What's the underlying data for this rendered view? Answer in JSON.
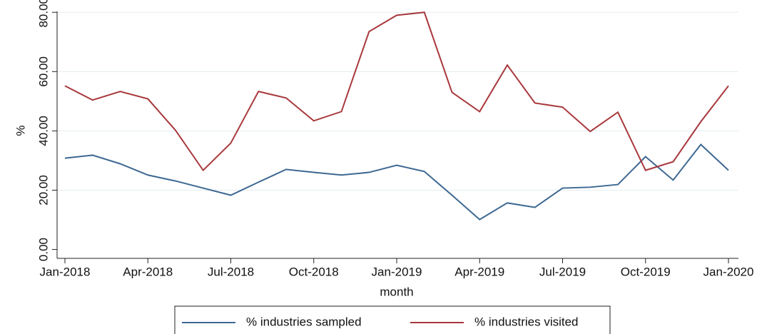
{
  "chart_data": {
    "type": "line",
    "xlabel": "month",
    "ylabel": "%",
    "categories": [
      "Jan-2018",
      null,
      null,
      "Apr-2018",
      null,
      null,
      "Jul-2018",
      null,
      null,
      "Oct-2018",
      null,
      null,
      "Jan-2019",
      null,
      null,
      "Apr-2019",
      null,
      null,
      "Jul-2019",
      null,
      null,
      "Oct-2019",
      null,
      null,
      "Jan-2020"
    ],
    "series": [
      {
        "name": "% industries sampled",
        "color": "#3d6892",
        "values": [
          30.8,
          31.8,
          28.9,
          25.1,
          23.1,
          20.7,
          18.3,
          22.7,
          27.0,
          26.0,
          25.1,
          26.0,
          28.4,
          26.3,
          18.3,
          10.1,
          15.7,
          14.2,
          20.7,
          21.0,
          21.9,
          31.3,
          23.4,
          35.4,
          26.7
        ]
      },
      {
        "name": "% industries visited",
        "color": "#a8383c",
        "values": [
          55.2,
          50.4,
          53.3,
          50.8,
          40.2,
          26.7,
          35.9,
          53.3,
          51.1,
          43.4,
          46.5,
          73.5,
          79.0,
          80.0,
          53.0,
          46.5,
          62.2,
          49.4,
          48.0,
          39.8,
          46.3,
          26.7,
          29.6,
          43.1,
          55.2
        ]
      }
    ],
    "ylim": [
      -3,
      80.3
    ],
    "yticks": [
      {
        "value": 0,
        "label": "0.00"
      },
      {
        "value": 20,
        "label": "20.00"
      },
      {
        "value": 40,
        "label": "40.00"
      },
      {
        "value": 60,
        "label": "60.00"
      },
      {
        "value": 80,
        "label": "80.00"
      }
    ],
    "grid": true
  }
}
